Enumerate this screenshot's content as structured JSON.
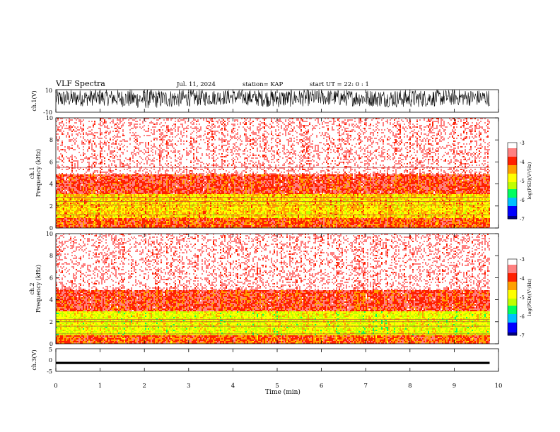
{
  "header": {
    "title": "VLF Spectra",
    "date": "Jul. 11, 2024",
    "station": "station= KAP",
    "start": "start UT =  22: 0 : 1"
  },
  "colors": {
    "axis": "#000000",
    "background": "#ffffff",
    "colormap": [
      "#000080",
      "#0000ff",
      "#00c0ff",
      "#00ff60",
      "#c0ff00",
      "#ffff00",
      "#ffa000",
      "#ff2000",
      "#ff8080",
      "#ffffff"
    ]
  },
  "chart_data": [
    {
      "type": "line",
      "id": "ch1-waveform",
      "ylabel": "ch.1(V)",
      "ylim": [
        -10,
        10
      ],
      "yticks": [
        "10",
        "-10"
      ],
      "xlim": [
        0,
        10
      ],
      "description_of_signal": "dense noisy waveform saturating between roughly -5 and +10 V",
      "x": [
        0,
        1,
        2,
        3,
        4,
        5,
        6,
        7,
        8,
        9,
        9.8
      ],
      "y_max": [
        10,
        10,
        10,
        10,
        10,
        10,
        10,
        10,
        10,
        10,
        10
      ],
      "y_min": [
        -6,
        -4,
        -7,
        -5,
        -3,
        -6,
        -4,
        -5,
        -6,
        -4,
        -5
      ]
    },
    {
      "type": "heatmap",
      "id": "ch1-spectrogram",
      "ylabel": "ch.1\nFrequency (kHz)",
      "ylim": [
        0,
        10
      ],
      "yticks": [
        "0",
        "2",
        "4",
        "6",
        "8",
        "10"
      ],
      "xlim": [
        0,
        9.8
      ],
      "colorbar": {
        "label": "log(PSD)(V²/Hz)",
        "range": [
          -7,
          -3
        ],
        "ticks": [
          "-3",
          "-4",
          "-5",
          "-6",
          "-7"
        ]
      },
      "bands_khz": [
        {
          "from": 0,
          "to": 1.0,
          "log_psd": -4.0
        },
        {
          "from": 1.0,
          "to": 3.2,
          "log_psd": -4.6
        },
        {
          "from": 3.2,
          "to": 5.0,
          "log_psd": -3.8
        },
        {
          "from": 5.0,
          "to": 10,
          "log_psd": -3.2
        }
      ],
      "lines_khz": [
        1.2,
        2.1,
        2.4,
        2.8,
        5.5
      ]
    },
    {
      "type": "heatmap",
      "id": "ch2-spectrogram",
      "ylabel": "ch.2\nFrequency (kHz)",
      "ylim": [
        0,
        10
      ],
      "yticks": [
        "0",
        "2",
        "4",
        "6",
        "8",
        "10"
      ],
      "xlim": [
        0,
        9.8
      ],
      "colorbar": {
        "label": "log(PSD)(V²/Hz)",
        "range": [
          -7,
          -3
        ],
        "ticks": [
          "-3",
          "-4",
          "-5",
          "-6",
          "-7"
        ]
      },
      "bands_khz": [
        {
          "from": 0,
          "to": 0.8,
          "log_psd": -4.0
        },
        {
          "from": 0.8,
          "to": 3.0,
          "log_psd": -4.9
        },
        {
          "from": 3.0,
          "to": 5.0,
          "log_psd": -3.8
        },
        {
          "from": 5.0,
          "to": 10,
          "log_psd": -3.2
        }
      ],
      "lines_khz": [
        0.9,
        1.6,
        2.0,
        2.2
      ]
    },
    {
      "type": "line",
      "id": "ch3-waveform",
      "ylabel": "ch.3(V)",
      "ylim": [
        -5,
        5
      ],
      "yticks": [
        "5",
        "0",
        "-5"
      ],
      "xlim": [
        0,
        10
      ],
      "x": [
        0,
        9.8
      ],
      "y_max": [
        -0.8,
        -0.8
      ],
      "y_min": [
        -1.8,
        -1.8
      ]
    }
  ],
  "x_axis": {
    "label": "Time (min)",
    "ticks": [
      "0",
      "1",
      "2",
      "3",
      "4",
      "5",
      "6",
      "7",
      "8",
      "9",
      "10"
    ],
    "range": [
      0,
      10
    ]
  }
}
